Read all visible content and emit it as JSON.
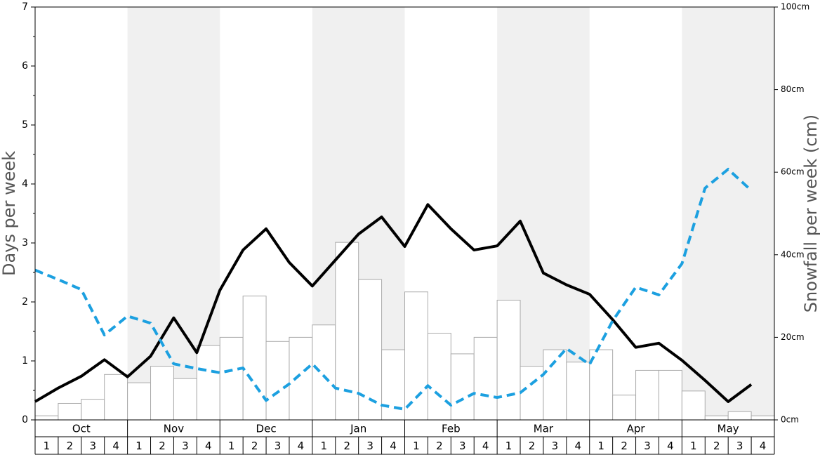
{
  "chart_data": {
    "type": "bar_line",
    "y_label": "Days per week",
    "y2_label": "Snowfall per week (cm)",
    "months": [
      "Oct",
      "Nov",
      "Dec",
      "Jan",
      "Feb",
      "Mar",
      "Apr",
      "May"
    ],
    "weeks": [
      "1",
      "2",
      "3",
      "4"
    ],
    "ylim": [
      0,
      7
    ],
    "yticks": [
      0,
      1,
      2,
      3,
      4,
      5,
      6,
      7
    ],
    "y2lim": [
      0,
      100
    ],
    "y2ticks": [
      {
        "value": 0,
        "label": "0cm"
      },
      {
        "value": 20,
        "label": "20cm"
      },
      {
        "value": 40,
        "label": "40cm"
      },
      {
        "value": 60,
        "label": "60cm"
      },
      {
        "value": 80,
        "label": "80cm"
      },
      {
        "value": 100,
        "label": "100cm"
      }
    ],
    "series": [
      {
        "type": "bar",
        "axis": "y2",
        "color": "#ffffff",
        "edge_color": "#aaaaaa",
        "values": [
          1,
          4,
          5,
          11,
          9,
          13,
          10,
          18,
          20,
          30,
          19,
          20,
          23,
          43,
          34,
          17,
          31,
          21,
          16,
          20,
          29,
          13,
          17,
          14,
          17,
          6,
          12,
          12,
          7,
          1,
          2,
          1
        ]
      },
      {
        "type": "line",
        "color": "#000000",
        "dashed": false,
        "values": [
          0.31,
          0.54,
          0.74,
          1.02,
          0.73,
          1.08,
          1.73,
          1.14,
          2.2,
          2.88,
          3.24,
          2.67,
          2.27,
          2.71,
          3.15,
          3.44,
          2.94,
          3.65,
          3.24,
          2.88,
          2.95,
          3.37,
          2.49,
          2.29,
          2.13,
          1.7,
          1.23,
          1.3,
          1.01,
          0.67,
          0.31,
          0.6
        ]
      },
      {
        "type": "line",
        "color": "#1ca0e0",
        "dashed": true,
        "values": [
          2.54,
          2.38,
          2.21,
          1.44,
          1.76,
          1.64,
          0.95,
          0.87,
          0.8,
          0.88,
          0.33,
          0.61,
          0.95,
          0.54,
          0.45,
          0.25,
          0.18,
          0.58,
          0.25,
          0.45,
          0.38,
          0.46,
          0.77,
          1.21,
          0.94,
          1.68,
          2.25,
          2.12,
          2.65,
          3.93,
          4.25,
          3.89
        ]
      }
    ]
  }
}
